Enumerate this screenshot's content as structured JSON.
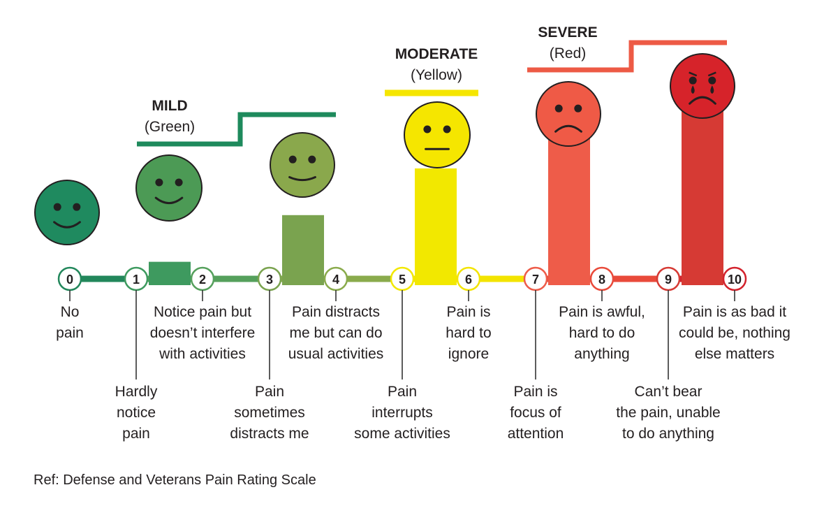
{
  "categories": [
    {
      "title": "MILD",
      "subtitle": "(Green)",
      "color": "#1e8a5c"
    },
    {
      "title": "MODERATE",
      "subtitle": "(Yellow)",
      "color": "#f5e600"
    },
    {
      "title": "SEVERE",
      "subtitle": "(Red)",
      "color": "#ed5a45"
    }
  ],
  "levels": [
    {
      "number": "0",
      "color": "#22875b",
      "lines": [
        "No",
        "pain"
      ]
    },
    {
      "number": "1",
      "color": "#3e9a5f",
      "value": 1,
      "lines": [
        "Hardly",
        "notice",
        "pain"
      ]
    },
    {
      "number": "2",
      "color": "#55a05c",
      "lines": [
        "Notice pain but",
        "doesn’t interfere",
        "with activities"
      ]
    },
    {
      "number": "3",
      "color": "#7aa34f",
      "value": 3,
      "lines": [
        "Pain",
        "sometimes",
        "distracts me"
      ]
    },
    {
      "number": "4",
      "color": "#8aab4c",
      "lines": [
        "Pain distracts",
        "me but can do",
        "usual activities"
      ]
    },
    {
      "number": "5",
      "color": "#f2e800",
      "value": 5,
      "lines": [
        "Pain",
        "interrupts",
        "some activities"
      ]
    },
    {
      "number": "6",
      "color": "#f3e400",
      "lines": [
        "Pain is",
        "hard to",
        "ignore"
      ]
    },
    {
      "number": "7",
      "color": "#ee5c49",
      "value": 7,
      "lines": [
        "Pain is",
        "focus of",
        "attention"
      ]
    },
    {
      "number": "8",
      "color": "#e94a3a",
      "lines": [
        "Pain is awful,",
        "hard to do",
        "anything"
      ]
    },
    {
      "number": "9",
      "color": "#d63a34",
      "value": 9,
      "lines": [
        "Can’t bear",
        "the pain, unable",
        "to do anything"
      ]
    },
    {
      "number": "10",
      "color": "#d3222c",
      "lines": [
        "Pain is as bad it",
        "could be, nothing",
        "else matters"
      ]
    }
  ],
  "faces": [
    {
      "level": 0,
      "expression": "smile",
      "color": "#1f8a5f"
    },
    {
      "level": 2,
      "expression": "smile",
      "color": "#4c9a55"
    },
    {
      "level": 4,
      "expression": "slight-smile",
      "color": "#8aa84c"
    },
    {
      "level": 6,
      "expression": "neutral",
      "color": "#f5e600"
    },
    {
      "level": 8,
      "expression": "frown",
      "color": "#ef5a46"
    },
    {
      "level": 10,
      "expression": "crying",
      "color": "#d6232a"
    }
  ],
  "reference": "Ref: Defense and Veterans Pain Rating Scale"
}
